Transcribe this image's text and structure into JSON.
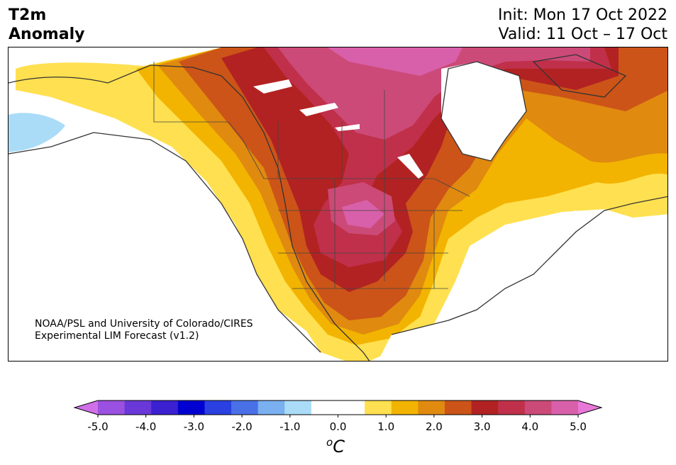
{
  "header": {
    "variable": "T2m\nAnomaly",
    "init": "Init: Mon 17 Oct 2022",
    "valid": "Valid: 11 Oct – 17 Oct"
  },
  "credit": {
    "line1": "NOAA/PSL and University of Colorado/CIRES",
    "line2": "Experimental LIM Forecast (v1.2)"
  },
  "colorbar": {
    "unit_base": "C",
    "unit_sup": "o",
    "ticks": [
      "-5.0",
      "-4.0",
      "-3.0",
      "-2.0",
      "-1.0",
      "0.0",
      "1.0",
      "2.0",
      "3.0",
      "4.0",
      "5.0"
    ],
    "colors": [
      "#d070e8",
      "#9a50e0",
      "#6a38d8",
      "#3a20d0",
      "#0000d0",
      "#2a40e0",
      "#4a70e8",
      "#7ab0f0",
      "#aadcf8",
      "#ffffff",
      "#ffffff",
      "#ffe050",
      "#f2b400",
      "#e08a10",
      "#cc5418",
      "#b22222",
      "#c0304a",
      "#cc4a78",
      "#d860aa",
      "#e878d8"
    ]
  },
  "map": {
    "land_outline_color": "#333333",
    "anomaly_levels": {
      "yellow": "#ffe050",
      "gold": "#f2b400",
      "orange": "#e08a10",
      "dark_orange": "#cc5418",
      "red": "#b22222",
      "crimson": "#c0304a",
      "pink": "#cc4a78",
      "magenta": "#d860aa",
      "light_blue": "#aadcf8"
    }
  }
}
